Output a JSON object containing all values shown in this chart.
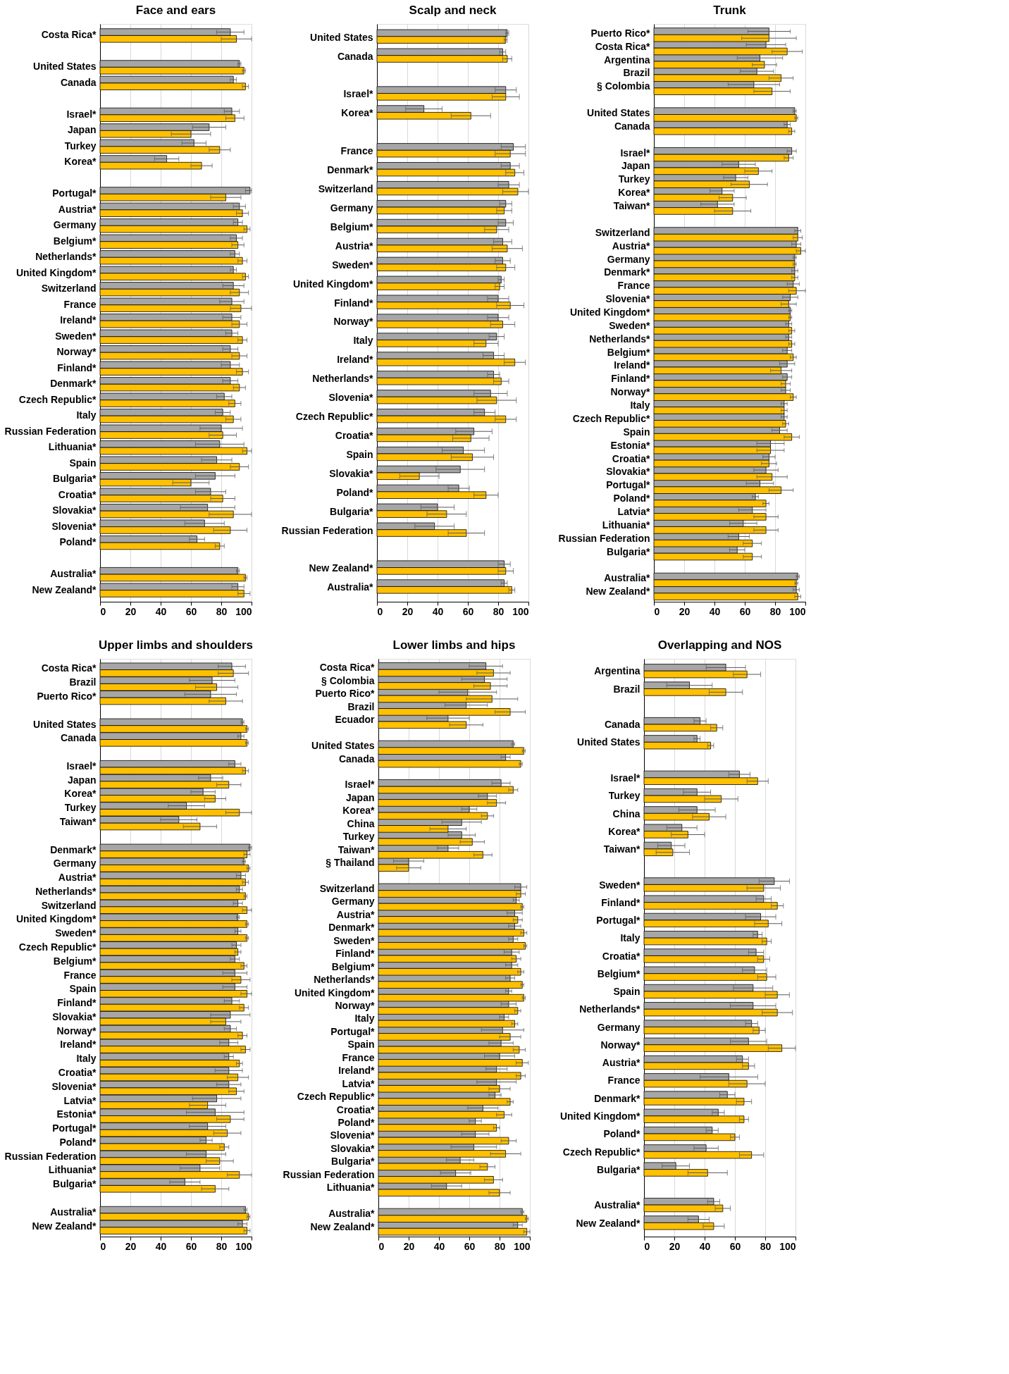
{
  "chart_data": [
    {
      "type": "bar",
      "orientation": "horizontal",
      "title": "Face and ears",
      "xlim": [
        0,
        100
      ],
      "xticks": [
        0,
        20,
        40,
        60,
        80,
        100
      ],
      "grid": "x",
      "categories": [
        "Costa Rica*",
        null,
        "United States",
        "Canada",
        null,
        "Israel*",
        "Japan",
        "Turkey",
        "Korea*",
        null,
        "Portugal*",
        "Austria*",
        "Germany",
        "Belgium*",
        "Netherlands*",
        "United Kingdom*",
        "Switzerland",
        "France",
        "Ireland*",
        "Sweden*",
        "Norway*",
        "Finland*",
        "Denmark*",
        "Czech Republic*",
        "Italy",
        "Russian Federation",
        "Lithuania*",
        "Spain",
        "Bulgaria*",
        "Croatia*",
        "Slovakia*",
        "Slovenia*",
        "Poland*",
        null,
        "Australia*",
        "New Zealand*"
      ],
      "series": [
        {
          "color": "#a6a6a6",
          "values": [
            86,
            null,
            92,
            88,
            null,
            87,
            72,
            62,
            44,
            null,
            99,
            92,
            91,
            90,
            89,
            88,
            88,
            87,
            87,
            87,
            86,
            86,
            86,
            82,
            81,
            80,
            79,
            77,
            76,
            73,
            71,
            69,
            64,
            null,
            91,
            91
          ],
          "errors": [
            9,
            null,
            1,
            2,
            null,
            5,
            11,
            8,
            8,
            null,
            [
              96,
              100
            ],
            4,
            3,
            4,
            3,
            2,
            7,
            8,
            6,
            4,
            5,
            6,
            5,
            5,
            5,
            14,
            16,
            10,
            13,
            10,
            18,
            13,
            5,
            null,
            1,
            4
          ]
        },
        {
          "color": "#ffc000",
          "values": [
            90,
            null,
            95,
            96,
            null,
            89,
            60,
            79,
            67,
            null,
            83,
            94,
            97,
            91,
            94,
            96,
            92,
            93,
            92,
            94,
            92,
            94,
            92,
            89,
            88,
            81,
            97,
            92,
            60,
            81,
            88,
            86,
            79,
            null,
            96,
            95
          ],
          "errors": [
            10,
            null,
            1,
            2,
            null,
            6,
            13,
            7,
            7,
            null,
            10,
            4,
            2,
            4,
            3,
            2,
            6,
            7,
            5,
            3,
            5,
            4,
            4,
            4,
            5,
            9,
            3,
            6,
            12,
            8,
            [
              72,
              100
            ],
            11,
            3,
            null,
            1,
            4
          ]
        }
      ]
    },
    {
      "type": "bar",
      "orientation": "horizontal",
      "title": "Scalp and neck",
      "xlim": [
        0,
        100
      ],
      "xticks": [
        0,
        20,
        40,
        60,
        80,
        100
      ],
      "grid": "x",
      "categories": [
        "United States",
        "Canada",
        null,
        "Israel*",
        "Korea*",
        null,
        "France",
        "Denmark*",
        "Switzerland",
        "Germany",
        "Belgium*",
        "Austria*",
        "Sweden*",
        "United Kingdom*",
        "Finland*",
        "Norway*",
        "Italy",
        "Ireland*",
        "Netherlands*",
        "Slovenia*",
        "Czech Republic*",
        "Croatia*",
        "Spain",
        "Slovakia*",
        "Poland*",
        "Bulgaria*",
        "Russian Federation",
        null,
        "New Zealand*",
        "Australia*"
      ],
      "series": [
        {
          "color": "#a6a6a6",
          "values": [
            86,
            83,
            null,
            85,
            31,
            null,
            90,
            88,
            87,
            85,
            85,
            83,
            83,
            82,
            80,
            80,
            79,
            77,
            77,
            75,
            71,
            64,
            57,
            55,
            54,
            40,
            38,
            null,
            84,
            84
          ],
          "errors": [
            1,
            2,
            null,
            7,
            12,
            null,
            8,
            6,
            7,
            4,
            5,
            6,
            5,
            2,
            7,
            7,
            5,
            7,
            4,
            11,
            7,
            12,
            14,
            16,
            7,
            11,
            13,
            null,
            4,
            2
          ]
        },
        {
          "color": "#ffc000",
          "values": [
            85,
            86,
            null,
            85,
            62,
            null,
            88,
            91,
            93,
            84,
            79,
            86,
            85,
            81,
            88,
            83,
            72,
            91,
            82,
            79,
            85,
            62,
            63,
            28,
            72,
            46,
            59,
            null,
            85,
            89
          ],
          "errors": [
            1,
            3,
            null,
            9,
            13,
            null,
            10,
            6,
            [
              83,
              100
            ],
            5,
            8,
            10,
            6,
            3,
            9,
            8,
            8,
            7,
            5,
            13,
            7,
            12,
            14,
            13,
            8,
            13,
            12,
            null,
            5,
            2
          ]
        }
      ]
    },
    {
      "type": "bar",
      "orientation": "horizontal",
      "title": "Trunk",
      "xlim": [
        0,
        100
      ],
      "xticks": [
        0,
        20,
        40,
        60,
        80,
        100
      ],
      "grid": "x",
      "categories": [
        "Puerto Rico*",
        "Costa Rica*",
        "Argentina",
        "Brazil",
        "§ Colombia",
        null,
        "United States",
        "Canada",
        null,
        "Israel*",
        "Japan",
        "Turkey",
        "Korea*",
        "Taiwan*",
        null,
        "Switzerland",
        "Austria*",
        "Germany",
        "Denmark*",
        "France",
        "Slovenia*",
        "United Kingdom*",
        "Sweden*",
        "Netherlands*",
        "Belgium*",
        "Ireland*",
        "Finland*",
        "Norway*",
        "Italy",
        "Czech Republic*",
        "Spain",
        "Estonia*",
        "Croatia*",
        "Slovakia*",
        "Portugal*",
        "Poland*",
        "Latvia*",
        "Lithuania*",
        "Russian Federation",
        "Bulgaria*",
        null,
        "Australia*",
        "New Zealand*"
      ],
      "series": [
        {
          "color": "#a6a6a6",
          "values": [
            76,
            74,
            70,
            68,
            66,
            null,
            93,
            88,
            null,
            91,
            56,
            54,
            45,
            42,
            null,
            95,
            94,
            93,
            93,
            92,
            90,
            90,
            89,
            89,
            88,
            88,
            88,
            87,
            86,
            86,
            83,
            77,
            76,
            74,
            70,
            67,
            65,
            59,
            56,
            55,
            null,
            95,
            94
          ],
          "errors": [
            14,
            13,
            15,
            11,
            17,
            null,
            1,
            2,
            null,
            3,
            11,
            8,
            8,
            11,
            null,
            2,
            3,
            1,
            2,
            4,
            5,
            1,
            2,
            2,
            3,
            5,
            3,
            3,
            2,
            2,
            5,
            9,
            4,
            8,
            9,
            2,
            9,
            9,
            7,
            5,
            null,
            1,
            2
          ]
        },
        {
          "color": "#ffc000",
          "values": [
            76,
            88,
            73,
            84,
            78,
            null,
            94,
            91,
            null,
            89,
            69,
            63,
            52,
            52,
            null,
            95,
            97,
            93,
            93,
            94,
            89,
            90,
            91,
            91,
            92,
            84,
            87,
            92,
            86,
            87,
            91,
            77,
            76,
            78,
            84,
            74,
            74,
            74,
            65,
            65,
            null,
            94,
            95
          ],
          "errors": [
            18,
            10,
            8,
            8,
            12,
            null,
            1,
            2,
            null,
            3,
            9,
            12,
            9,
            12,
            null,
            3,
            [
              94,
              100
            ],
            1,
            2,
            [
              89,
              100
            ],
            5,
            1,
            2,
            2,
            2,
            7,
            3,
            2,
            2,
            2,
            5,
            9,
            5,
            10,
            8,
            2,
            8,
            8,
            6,
            6,
            null,
            1,
            2
          ]
        }
      ]
    },
    {
      "type": "bar",
      "orientation": "horizontal",
      "title": "Upper limbs and shoulders",
      "xlim": [
        0,
        100
      ],
      "xticks": [
        0,
        20,
        40,
        60,
        80,
        100
      ],
      "grid": "x",
      "categories": [
        "Costa Rica*",
        "Brazil",
        "Puerto Rico*",
        null,
        "United States",
        "Canada",
        null,
        "Israel*",
        "Japan",
        "Korea*",
        "Turkey",
        "Taiwan*",
        null,
        "Denmark*",
        "Germany",
        "Austria*",
        "Netherlands*",
        "Switzerland",
        "United Kingdom*",
        "Sweden*",
        "Czech Republic*",
        "Belgium*",
        "France",
        "Spain",
        "Finland*",
        "Slovakia*",
        "Norway*",
        "Ireland*",
        "Italy",
        "Croatia*",
        "Slovenia*",
        "Latvia*",
        "Estonia*",
        "Portugal*",
        "Poland*",
        "Russian Federation",
        "Lithuania*",
        "Bulgaria*",
        null,
        "Australia*",
        "New Zealand*"
      ],
      "series": [
        {
          "color": "#a6a6a6",
          "values": [
            87,
            74,
            73,
            null,
            94,
            93,
            null,
            89,
            73,
            68,
            57,
            52,
            null,
            99,
            95,
            93,
            92,
            91,
            91,
            91,
            90,
            89,
            89,
            89,
            87,
            86,
            86,
            85,
            85,
            85,
            85,
            77,
            76,
            71,
            70,
            70,
            66,
            56,
            null,
            96,
            94
          ],
          "errors": [
            9,
            15,
            17,
            null,
            1,
            2,
            null,
            4,
            8,
            8,
            12,
            12,
            null,
            1,
            1,
            3,
            2,
            3,
            1,
            2,
            3,
            3,
            8,
            8,
            5,
            13,
            4,
            6,
            3,
            9,
            8,
            16,
            19,
            12,
            4,
            13,
            13,
            10,
            null,
            1,
            3
          ]
        },
        {
          "color": "#ffc000",
          "values": [
            88,
            77,
            83,
            null,
            97,
            97,
            null,
            96,
            85,
            76,
            92,
            66,
            null,
            97,
            98,
            96,
            96,
            97,
            97,
            97,
            91,
            95,
            93,
            97,
            95,
            83,
            94,
            96,
            92,
            91,
            90,
            71,
            86,
            84,
            82,
            79,
            92,
            76,
            null,
            98,
            97
          ],
          "errors": [
            10,
            14,
            11,
            null,
            1,
            1,
            null,
            2,
            8,
            7,
            [
              83,
              100
            ],
            11,
            null,
            2,
            1,
            2,
            1,
            3,
            1,
            1,
            2,
            2,
            6,
            [
              93,
              100
            ],
            3,
            10,
            3,
            3,
            2,
            7,
            5,
            12,
            9,
            9,
            3,
            9,
            [
              84,
              100
            ],
            9,
            null,
            1,
            2
          ]
        }
      ]
    },
    {
      "type": "bar",
      "orientation": "horizontal",
      "title": "Lower limbs and hips",
      "xlim": [
        0,
        100
      ],
      "xticks": [
        0,
        20,
        40,
        60,
        80,
        100
      ],
      "grid": "x",
      "categories": [
        "Costa Rica*",
        "§ Colombia",
        "Puerto Rico*",
        "Brazil",
        "Ecuador",
        null,
        "United States",
        "Canada",
        null,
        "Israel*",
        "Japan",
        "Korea*",
        "China",
        "Turkey",
        "Taiwan*",
        "§ Thailand",
        null,
        "Switzerland",
        "Germany",
        "Austria*",
        "Denmark*",
        "Sweden*",
        "Finland*",
        "Belgium*",
        "Netherlands*",
        "United Kingdom*",
        "Norway*",
        "Italy",
        "Portugal*",
        "Spain",
        "France",
        "Ireland*",
        "Latvia*",
        "Czech Republic*",
        "Croatia*",
        "Poland*",
        "Slovenia*",
        "Slovakia*",
        "Bulgaria*",
        "Russian Federation",
        "Lithuania*",
        null,
        "Australia*",
        "New Zealand*"
      ],
      "series": [
        {
          "color": "#a6a6a6",
          "values": [
            71,
            70,
            59,
            58,
            46,
            null,
            89,
            84,
            null,
            81,
            72,
            60,
            55,
            55,
            46,
            20,
            null,
            94,
            91,
            90,
            90,
            89,
            88,
            88,
            87,
            86,
            86,
            83,
            82,
            81,
            80,
            78,
            78,
            77,
            69,
            64,
            64,
            63,
            54,
            51,
            45,
            null,
            95,
            92
          ],
          "errors": [
            11,
            15,
            19,
            14,
            14,
            null,
            1,
            3,
            null,
            6,
            6,
            5,
            13,
            9,
            7,
            10,
            null,
            4,
            2,
            5,
            4,
            3,
            5,
            4,
            3,
            2,
            5,
            3,
            14,
            8,
            10,
            7,
            13,
            4,
            10,
            4,
            9,
            15,
            9,
            10,
            10,
            null,
            1,
            3
          ]
        },
        {
          "color": "#ffc000",
          "values": [
            76,
            74,
            75,
            87,
            58,
            null,
            96,
            94,
            null,
            89,
            78,
            72,
            46,
            62,
            69,
            20,
            null,
            94,
            95,
            92,
            96,
            97,
            91,
            94,
            95,
            96,
            92,
            90,
            87,
            93,
            95,
            94,
            80,
            87,
            83,
            78,
            86,
            84,
            72,
            76,
            80,
            null,
            98,
            98
          ],
          "errors": [
            11,
            11,
            17,
            10,
            11,
            null,
            1,
            1,
            null,
            3,
            6,
            4,
            12,
            8,
            6,
            8,
            null,
            3,
            1,
            3,
            2,
            1,
            3,
            2,
            1,
            1,
            2,
            2,
            7,
            4,
            4,
            3,
            7,
            2,
            5,
            2,
            5,
            10,
            5,
            6,
            7,
            null,
            1,
            2
          ]
        }
      ]
    },
    {
      "type": "bar",
      "orientation": "horizontal",
      "title": "Overlapping and NOS",
      "xlim": [
        0,
        100
      ],
      "xticks": [
        0,
        20,
        40,
        60,
        80,
        100
      ],
      "grid": "x",
      "categories": [
        "Argentina",
        "Brazil",
        null,
        "Canada",
        "United States",
        null,
        "Israel*",
        "Turkey",
        "China",
        "Korea*",
        "Taiwan*",
        null,
        "Sweden*",
        "Finland*",
        "Portugal*",
        "Italy",
        "Croatia*",
        "Belgium*",
        "Spain",
        "Netherlands*",
        "Germany",
        "Norway*",
        "Austria*",
        "France",
        "Denmark*",
        "United Kingdom*",
        "Poland*",
        "Czech Republic*",
        "Bulgaria*",
        null,
        "Australia*",
        "New Zealand*"
      ],
      "series": [
        {
          "color": "#a6a6a6",
          "values": [
            54,
            30,
            null,
            37,
            35,
            null,
            63,
            35,
            35,
            25,
            18,
            null,
            86,
            79,
            77,
            75,
            74,
            73,
            72,
            72,
            71,
            69,
            65,
            56,
            55,
            49,
            45,
            41,
            21,
            null,
            46,
            36
          ],
          "errors": [
            13,
            15,
            null,
            4,
            2,
            null,
            7,
            9,
            12,
            10,
            9,
            null,
            10,
            5,
            10,
            3,
            5,
            8,
            13,
            15,
            4,
            12,
            4,
            19,
            5,
            4,
            4,
            8,
            9,
            null,
            4,
            7
          ]
        },
        {
          "color": "#ffc000",
          "values": [
            68,
            54,
            null,
            48,
            44,
            null,
            75,
            51,
            43,
            29,
            19,
            null,
            79,
            88,
            82,
            81,
            79,
            81,
            88,
            88,
            76,
            91,
            69,
            68,
            66,
            66,
            60,
            71,
            42,
            null,
            52,
            46
          ],
          "errors": [
            9,
            11,
            null,
            4,
            2,
            null,
            7,
            11,
            11,
            11,
            11,
            null,
            11,
            4,
            9,
            3,
            4,
            6,
            8,
            10,
            4,
            [
              82,
              100
            ],
            4,
            12,
            5,
            3,
            3,
            8,
            13,
            null,
            5,
            7
          ]
        }
      ]
    }
  ]
}
